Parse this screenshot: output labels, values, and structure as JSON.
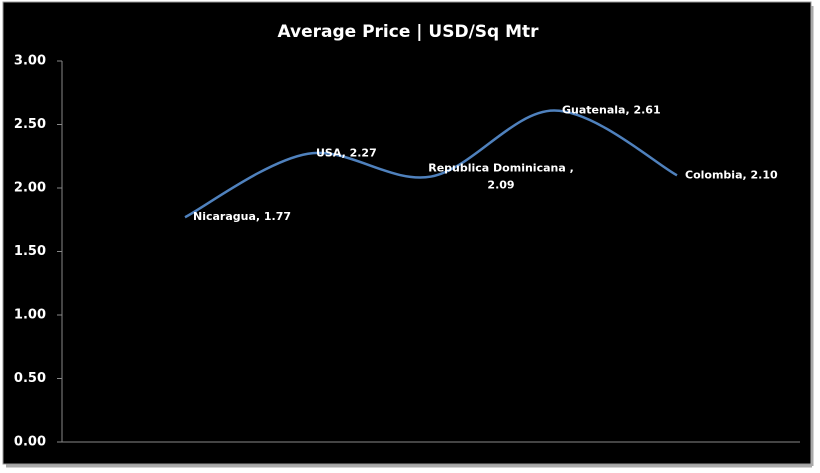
{
  "chart_data": {
    "type": "line",
    "title": "Average Price |  USD/Sq Mtr",
    "values": [
      1.77,
      2.27,
      2.09,
      2.61,
      2.1
    ],
    "value_labels": [
      "Nicaragua, 1.77",
      "USA, 2.27",
      "Republica Dominicana , 2.09",
      "Guatenala, 2.61",
      "Colombia, 2.10"
    ],
    "color": "#4f81bd",
    "smooth": true,
    "ylim": [
      0,
      3
    ],
    "yticks": [
      {
        "value": 0,
        "label": "0.00"
      },
      {
        "value": 0.5,
        "label": "0.50"
      },
      {
        "value": 1,
        "label": "1.00"
      },
      {
        "value": 1.5,
        "label": "1.50"
      },
      {
        "value": 2,
        "label": "2.00"
      },
      {
        "value": 2.5,
        "label": "2.50"
      },
      {
        "value": 3,
        "label": "3.00"
      }
    ]
  }
}
